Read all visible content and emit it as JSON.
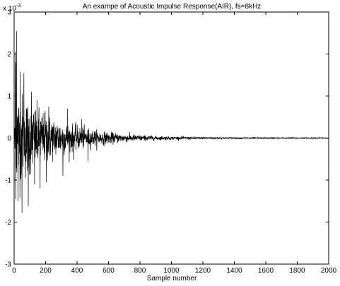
{
  "chart_data": {
    "type": "line",
    "title": "An exampe of Acoustic Impulse Response(AIR), fs=8kHz",
    "xlabel": "Sample number",
    "ylabel": "",
    "y_exponent_label": "x 10",
    "y_exponent_power": "-3",
    "xlim": [
      0,
      2000
    ],
    "ylim": [
      -0.003,
      0.003
    ],
    "x_ticks": [
      0,
      200,
      400,
      600,
      800,
      1000,
      1200,
      1400,
      1600,
      1800,
      2000
    ],
    "x_tick_labels": [
      "0",
      "200",
      "400",
      "600",
      "800",
      "1000",
      "1200",
      "1400",
      "1600",
      "1800",
      "2000"
    ],
    "y_ticks": [
      -0.003,
      -0.002,
      -0.001,
      0,
      0.001,
      0.002,
      0.003
    ],
    "y_tick_labels": [
      "-3",
      "-2",
      "-1",
      "0",
      "1",
      "2",
      "3"
    ],
    "grid": false,
    "line_color": "#000000",
    "series": [
      {
        "values_description_samples": 2000,
        "envelope": {
          "peak_sample": 15,
          "peak_value": 0.00255,
          "min_value": -0.00178,
          "decay_to_near_zero_sample": 1000
        }
      }
    ]
  }
}
